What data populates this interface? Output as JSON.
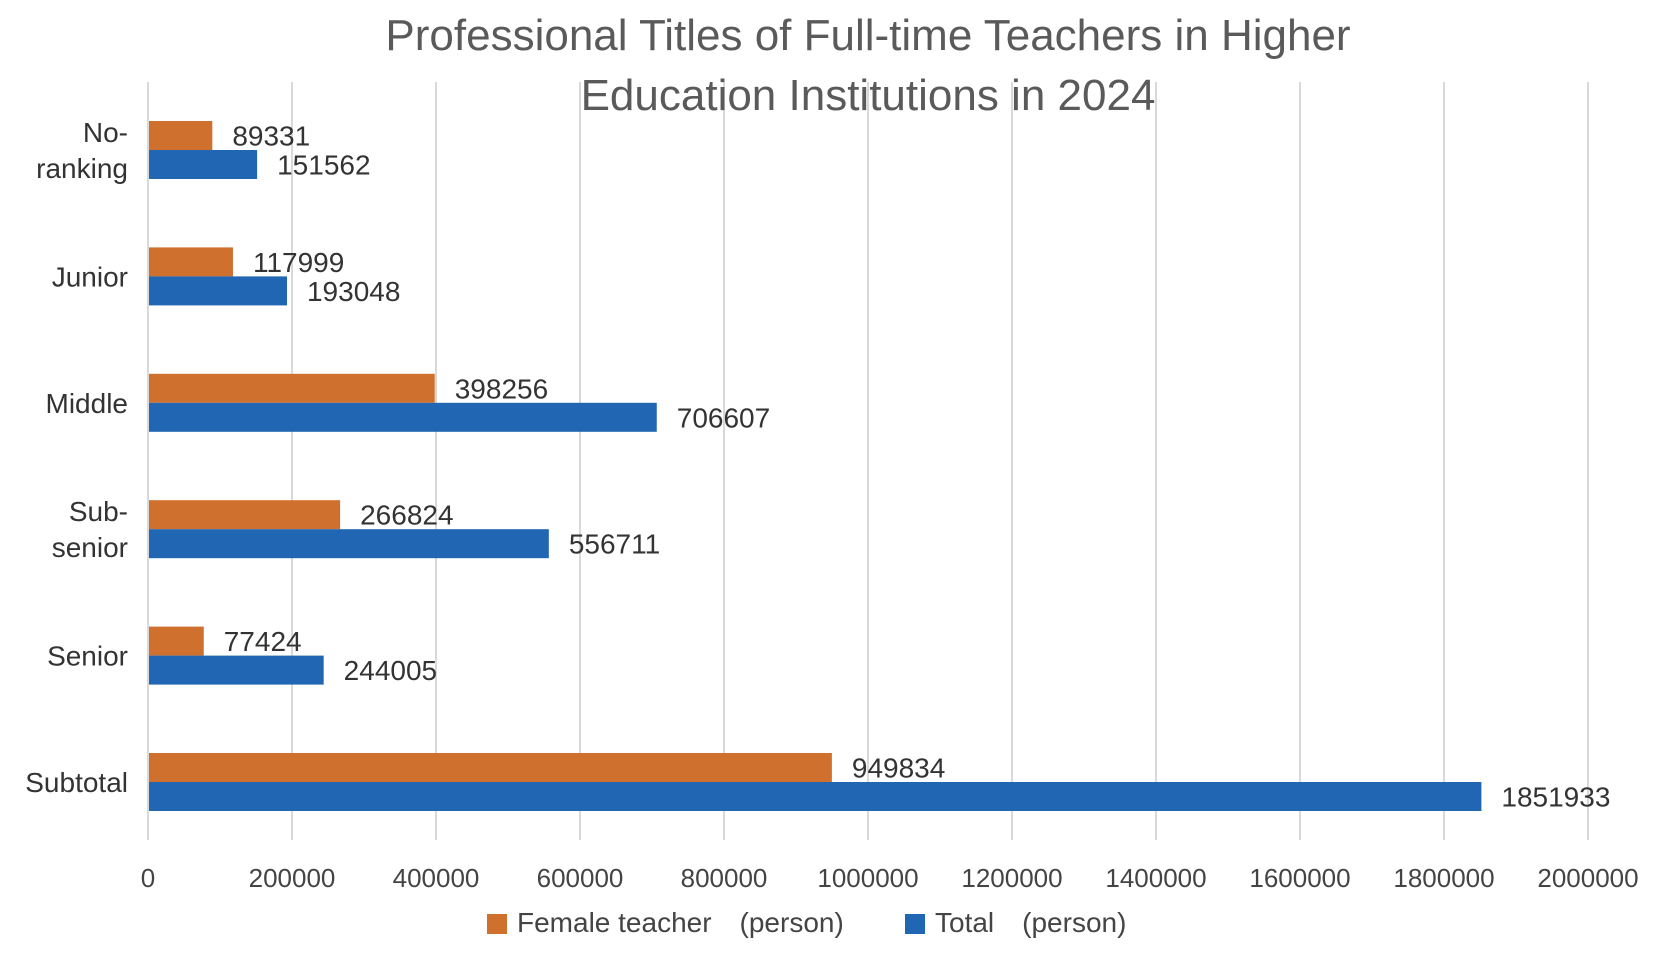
{
  "chart_data": {
    "type": "bar",
    "orientation": "horizontal",
    "title": [
      "Professional Titles of Full-time Teachers in Higher",
      "Education Institutions in 2024"
    ],
    "categories": [
      [
        "No-",
        "ranking"
      ],
      [
        "Junior"
      ],
      [
        "Middle"
      ],
      [
        "Sub-",
        "senior"
      ],
      [
        "Senior"
      ],
      [
        "Subtotal"
      ]
    ],
    "series": [
      {
        "name": "Female teacher　(person)",
        "color": "#d0702f",
        "values": [
          89331,
          117999,
          398256,
          266824,
          77424,
          949834
        ]
      },
      {
        "name": "Total　(person)",
        "color": "#2166b2",
        "values": [
          151562,
          193048,
          706607,
          556711,
          244005,
          1851933
        ]
      }
    ],
    "xlim": [
      0,
      2000000
    ],
    "xticks": [
      "0",
      "200000",
      "400000",
      "600000",
      "800000",
      "1000000",
      "1200000",
      "1400000",
      "1600000",
      "1800000",
      "2000000"
    ],
    "grid": true,
    "legend_position": "bottom"
  }
}
